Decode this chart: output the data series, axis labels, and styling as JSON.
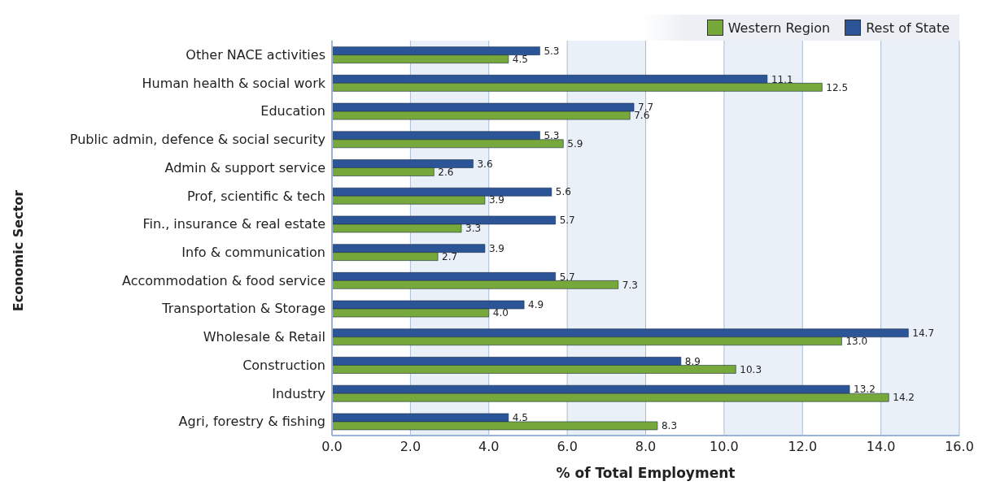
{
  "chart_data": {
    "type": "bar",
    "orientation": "horizontal",
    "xlabel": "% of Total Employment",
    "ylabel": "Economic Sector",
    "categories": [
      "Other NACE activities",
      "Human health & social work",
      "Education",
      "Public admin, defence & social security",
      "Admin & support service",
      "Prof, scientific & tech",
      "Fin., insurance & real estate",
      "Info & communication",
      "Accommodation & food service",
      "Transportation & Storage",
      "Wholesale & Retail",
      "Construction",
      "Industry",
      "Agri, forestry & fishing"
    ],
    "series": [
      {
        "name": "Western Region",
        "color": "#77a83c",
        "values": [
          4.5,
          12.5,
          7.6,
          5.9,
          2.6,
          3.9,
          3.3,
          2.7,
          7.3,
          4.0,
          13.0,
          10.3,
          14.2,
          8.3
        ],
        "value_labels": [
          "4.5",
          "12.5",
          "7.6",
          "5.9",
          "2.6",
          "3.9",
          "3.3",
          "2.7",
          "7.3",
          "4.0",
          "13.0",
          "10.3",
          "14.2",
          "8.3"
        ]
      },
      {
        "name": "Rest of State",
        "color": "#2c5597",
        "values": [
          5.3,
          11.1,
          7.7,
          5.3,
          3.6,
          5.6,
          5.7,
          3.9,
          5.7,
          4.9,
          14.7,
          8.9,
          13.2,
          4.5
        ],
        "value_labels": [
          "5.3",
          "11.1",
          "7.7",
          "5.3",
          "3.6",
          "5.6",
          "5.7",
          "3.9",
          "5.7",
          "4.9",
          "14.7",
          "8.9",
          "13.2",
          "4.5"
        ]
      }
    ],
    "xlim": [
      0,
      16
    ],
    "xticks": [
      {
        "value": 0,
        "label": "0.0"
      },
      {
        "value": 2,
        "label": "2.0"
      },
      {
        "value": 4,
        "label": "4.0"
      },
      {
        "value": 6,
        "label": "6.0"
      },
      {
        "value": 8,
        "label": "8.0"
      },
      {
        "value": 10,
        "label": "10.0"
      },
      {
        "value": 12,
        "label": "12.0"
      },
      {
        "value": 14,
        "label": "14.0"
      },
      {
        "value": 16,
        "label": "16.0"
      }
    ],
    "grid": "x",
    "legend": "top right"
  }
}
